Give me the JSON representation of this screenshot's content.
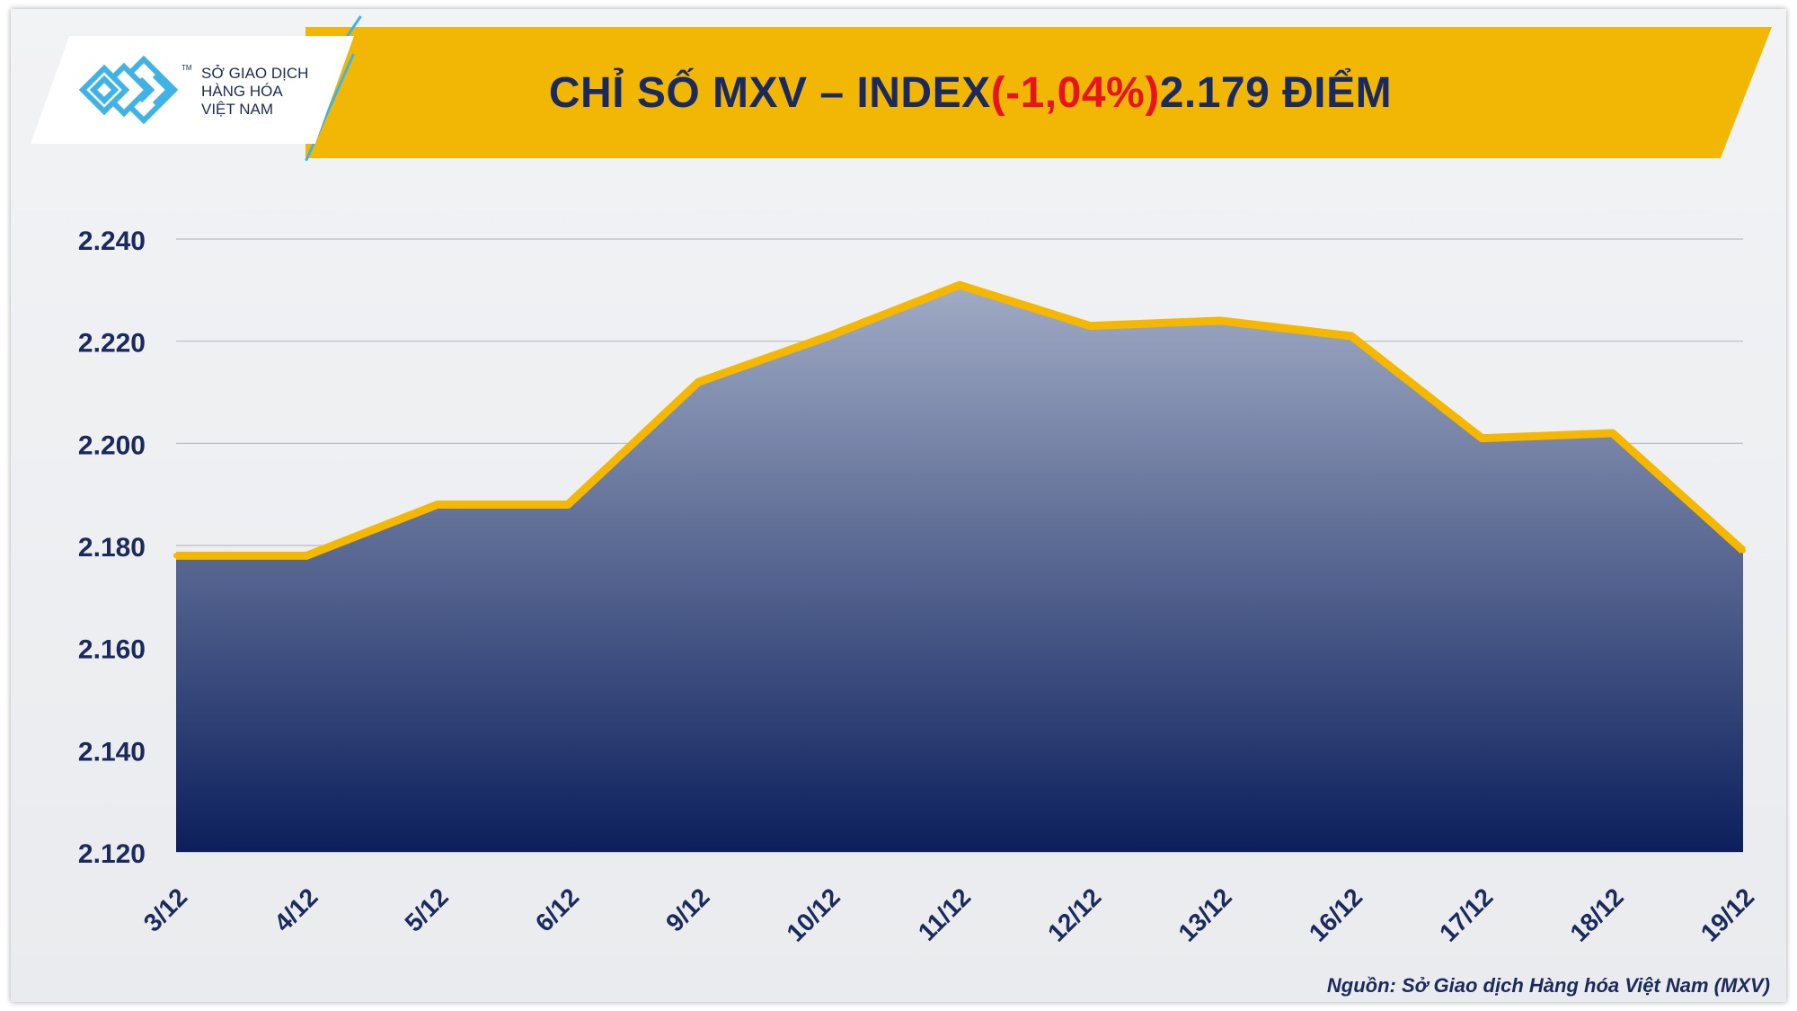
{
  "header": {
    "title_prefix": "CHỈ SỐ MXV – INDEX ",
    "title_change": "(-1,04%)",
    "title_suffix": " 2.179 ĐIỂM"
  },
  "logo": {
    "line1": "SỞ GIAO DỊCH",
    "line2": "HÀNG HÓA",
    "line3": "VIỆT NAM",
    "tm": "TM"
  },
  "colors": {
    "accent": "#f2b705",
    "title": "#1b2a5c",
    "negative": "#e8141c",
    "line": "#f5b700",
    "area_top": "#a0abc4",
    "area_bottom": "#0c1f5c"
  },
  "source": "Nguồn: Sở Giao dịch Hàng hóa Việt Nam (MXV)",
  "chart_data": {
    "type": "area",
    "categories": [
      "3/12",
      "4/12",
      "5/12",
      "6/12",
      "9/12",
      "10/12",
      "11/12",
      "12/12",
      "13/12",
      "16/12",
      "17/12",
      "18/12",
      "19/12"
    ],
    "series": [
      {
        "values": [
          2178,
          2178,
          2188,
          2188,
          2212,
          2221,
          2231,
          2223,
          2224,
          2221,
          2201,
          2202,
          2179
        ]
      }
    ],
    "ylim": [
      2120,
      2240
    ],
    "yticks": [
      2120,
      2140,
      2160,
      2180,
      2200,
      2220,
      2240
    ],
    "ytick_labels": [
      "2.120",
      "2.140",
      "2.160",
      "2.180",
      "2.200",
      "2.220",
      "2.240"
    ],
    "grid": true,
    "title": "",
    "xlabel": "",
    "ylabel": ""
  }
}
